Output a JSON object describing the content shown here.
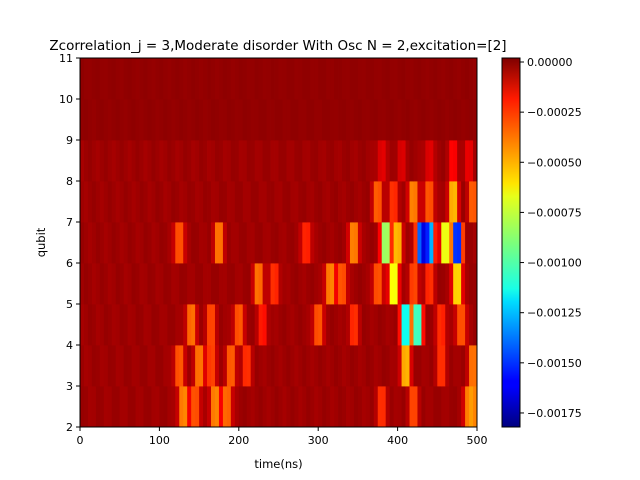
{
  "chart_data": {
    "type": "heatmap",
    "title": "Zcorrelation_j = 3,Moderate disorder With Osc N =  2,excitation=[2]",
    "xlabel": "time(ns)",
    "ylabel": "qubit",
    "xlim": [
      0,
      500
    ],
    "ylim": [
      2,
      11
    ],
    "x_ticks": [
      "0",
      "100",
      "200",
      "300",
      "400",
      "500"
    ],
    "y_ticks": [
      "2",
      "3",
      "4",
      "5",
      "6",
      "7",
      "8",
      "9",
      "10",
      "11"
    ],
    "colorbar": {
      "colormap": "jet",
      "range": [
        -0.00182,
        2e-05
      ],
      "ticks": [
        {
          "value": 0.0,
          "label": "0.00000"
        },
        {
          "value": -0.00025,
          "label": "−0.00025"
        },
        {
          "value": -0.0005,
          "label": "−0.00050"
        },
        {
          "value": -0.00075,
          "label": "−0.00075"
        },
        {
          "value": -0.001,
          "label": "−0.00100"
        },
        {
          "value": -0.00125,
          "label": "−0.00125"
        },
        {
          "value": -0.0015,
          "label": "−0.00150"
        },
        {
          "value": -0.00175,
          "label": "−0.00175"
        }
      ]
    },
    "grid": false,
    "rows": [
      {
        "qubit": 2,
        "hotspots": [
          [
            130,
            0.0005
          ],
          [
            145,
            0.0004
          ],
          [
            170,
            0.0005
          ],
          [
            185,
            0.00045
          ],
          [
            380,
            0.0003
          ],
          [
            420,
            0.00035
          ],
          [
            490,
            0.0005
          ],
          [
            500,
            0.0004
          ]
        ]
      },
      {
        "qubit": 3,
        "hotspots": [
          [
            125,
            0.0004
          ],
          [
            150,
            0.00045
          ],
          [
            165,
            0.00035
          ],
          [
            190,
            0.0004
          ],
          [
            210,
            0.0003
          ],
          [
            410,
            0.0006
          ],
          [
            455,
            0.0003
          ],
          [
            495,
            0.00045
          ]
        ]
      },
      {
        "qubit": 4,
        "hotspots": [
          [
            140,
            0.00045
          ],
          [
            165,
            0.00035
          ],
          [
            200,
            0.0004
          ],
          [
            230,
            0.00025
          ],
          [
            300,
            0.0004
          ],
          [
            345,
            0.0003
          ],
          [
            410,
            0.0013
          ],
          [
            425,
            0.0012
          ],
          [
            455,
            0.0003
          ],
          [
            480,
            0.0004
          ]
        ]
      },
      {
        "qubit": 5,
        "hotspots": [
          [
            225,
            0.00045
          ],
          [
            245,
            0.0003
          ],
          [
            315,
            0.0005
          ],
          [
            330,
            0.0004
          ],
          [
            375,
            0.0004
          ],
          [
            395,
            0.0008
          ],
          [
            420,
            0.00035
          ],
          [
            440,
            0.0003
          ],
          [
            475,
            0.0007
          ]
        ]
      },
      {
        "qubit": 6,
        "hotspots": [
          [
            125,
            0.0004
          ],
          [
            175,
            0.00045
          ],
          [
            285,
            0.0003
          ],
          [
            345,
            0.0005
          ],
          [
            385,
            0.001
          ],
          [
            400,
            0.0006
          ],
          [
            430,
            0.0017
          ],
          [
            440,
            0.0015
          ],
          [
            460,
            0.0008
          ],
          [
            475,
            0.0018
          ]
        ]
      },
      {
        "qubit": 7,
        "hotspots": [
          [
            375,
            0.0004
          ],
          [
            395,
            0.0003
          ],
          [
            420,
            0.0005
          ],
          [
            440,
            0.0004
          ],
          [
            470,
            0.0006
          ],
          [
            495,
            0.0004
          ]
        ]
      },
      {
        "qubit": 8,
        "hotspots": [
          [
            380,
            0.00015
          ],
          [
            405,
            0.00012
          ],
          [
            440,
            0.00015
          ],
          [
            470,
            0.0002
          ],
          [
            490,
            0.00015
          ]
        ]
      },
      {
        "qubit": 9,
        "hotspots": []
      },
      {
        "qubit": 10,
        "hotspots": []
      }
    ]
  }
}
